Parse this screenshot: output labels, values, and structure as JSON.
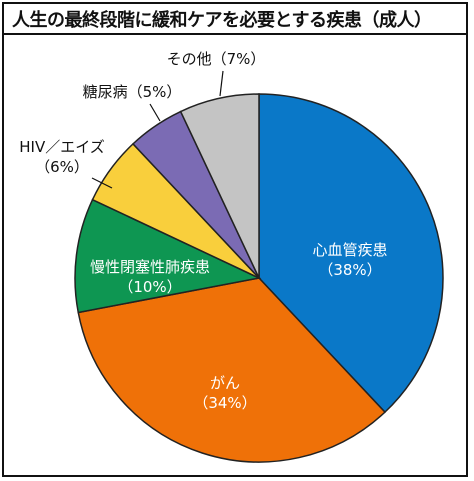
{
  "chart_data": {
    "type": "pie",
    "title": "人生の最終段階に緩和ケアを必要とする疾患（成人）",
    "slices": [
      {
        "name": "心血管疾患",
        "value": 38,
        "label": "（38%）",
        "color": "#0a78c8",
        "label_inside": true
      },
      {
        "name": "がん",
        "value": 34,
        "label": "（34%）",
        "color": "#ef7108",
        "label_inside": true
      },
      {
        "name": "慢性閉塞性肺疾患",
        "value": 10,
        "label": "（10%）",
        "color": "#0e9652",
        "label_inside": true
      },
      {
        "name": "HIV／エイズ",
        "value": 6,
        "label": "（6%）",
        "color": "#f9cf3c",
        "label_inside": false
      },
      {
        "name": "糖尿病",
        "value": 5,
        "label": "（5%）",
        "color": "#7b6bb4",
        "label_inside": false
      },
      {
        "name": "その他",
        "value": 7,
        "label": "（7%）",
        "color": "#c4c4c4",
        "label_inside": false
      }
    ]
  }
}
